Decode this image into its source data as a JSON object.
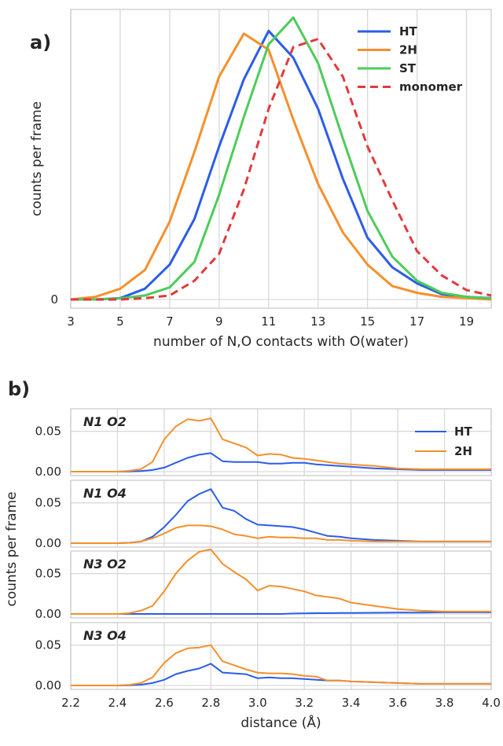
{
  "colors": {
    "HT": "#2b5de8",
    "2H": "#f5902b",
    "ST": "#4dcc5a",
    "monomer": "#e03a3e"
  },
  "chart_data": [
    {
      "panel": "a)",
      "type": "line",
      "xlabel": "number of N,O contacts with O(water)",
      "ylabel": "counts per frame",
      "xlim": [
        3,
        20
      ],
      "ylim": [
        0,
        1.08
      ],
      "xticks": [
        3,
        5,
        7,
        9,
        11,
        13,
        15,
        17,
        19
      ],
      "yticks": [
        0
      ],
      "grid": true,
      "legend_position": "top-right",
      "series": [
        {
          "name": "HT",
          "style": "solid",
          "color": "#2b5de8",
          "x": [
            3,
            4,
            5,
            6,
            7,
            8,
            9,
            10,
            11,
            12,
            13,
            14,
            15,
            16,
            17,
            18,
            19,
            20
          ],
          "y": [
            0,
            0,
            0.005,
            0.04,
            0.13,
            0.3,
            0.57,
            0.82,
            1.0,
            0.9,
            0.71,
            0.45,
            0.23,
            0.12,
            0.06,
            0.02,
            0.01,
            0.005
          ]
        },
        {
          "name": "2H",
          "style": "solid",
          "color": "#f5902b",
          "x": [
            3,
            4,
            5,
            6,
            7,
            8,
            9,
            10,
            11,
            12,
            13,
            14,
            15,
            16,
            17,
            18,
            19,
            20
          ],
          "y": [
            0,
            0.01,
            0.04,
            0.11,
            0.29,
            0.55,
            0.83,
            0.99,
            0.93,
            0.67,
            0.43,
            0.25,
            0.13,
            0.05,
            0.025,
            0.01,
            0.005,
            0
          ]
        },
        {
          "name": "ST",
          "style": "solid",
          "color": "#4dcc5a",
          "x": [
            3,
            4,
            5,
            6,
            7,
            8,
            9,
            10,
            11,
            12,
            13,
            14,
            15,
            16,
            17,
            18,
            19,
            20
          ],
          "y": [
            0,
            0,
            0.004,
            0.015,
            0.045,
            0.14,
            0.39,
            0.68,
            0.95,
            1.05,
            0.88,
            0.6,
            0.33,
            0.16,
            0.07,
            0.025,
            0.01,
            0.004
          ]
        },
        {
          "name": "monomer",
          "style": "dashed",
          "color": "#e03a3e",
          "x": [
            3,
            4,
            5,
            6,
            7,
            8,
            9,
            10,
            11,
            12,
            13,
            14,
            15,
            16,
            17,
            18,
            19,
            20
          ],
          "y": [
            0,
            0,
            0,
            0.005,
            0.015,
            0.07,
            0.17,
            0.41,
            0.71,
            0.94,
            0.97,
            0.83,
            0.57,
            0.37,
            0.18,
            0.09,
            0.035,
            0.015
          ]
        }
      ]
    },
    {
      "panel": "b)",
      "type": "line",
      "xlabel": "distance (Å)",
      "ylabel": "counts per frame",
      "xlim": [
        2.2,
        4.0
      ],
      "ylim": [
        0,
        0.075
      ],
      "xticks": [
        2.2,
        2.4,
        2.6,
        2.8,
        3.0,
        3.2,
        3.4,
        3.6,
        3.8,
        4.0
      ],
      "yticks": [
        0.0,
        0.05
      ],
      "grid": true,
      "legend_position": "top-right",
      "legend": [
        "HT",
        "2H"
      ],
      "x": [
        2.2,
        2.3,
        2.4,
        2.45,
        2.5,
        2.55,
        2.6,
        2.65,
        2.7,
        2.75,
        2.8,
        2.85,
        2.9,
        2.95,
        3.0,
        3.05,
        3.1,
        3.15,
        3.2,
        3.25,
        3.3,
        3.35,
        3.4,
        3.5,
        3.6,
        3.7,
        3.8,
        3.9,
        4.0
      ],
      "subplots": [
        {
          "title": "N1 O2",
          "series": [
            {
              "name": "HT",
              "values": [
                0,
                0,
                0,
                0.0002,
                0.0008,
                0.002,
                0.005,
                0.011,
                0.017,
                0.021,
                0.023,
                0.013,
                0.012,
                0.012,
                0.012,
                0.01,
                0.01,
                0.011,
                0.011,
                0.009,
                0.008,
                0.007,
                0.006,
                0.004,
                0.003,
                0.002,
                0.002,
                0.002,
                0.002
              ]
            },
            {
              "name": "2H",
              "values": [
                0,
                0,
                0,
                0.001,
                0.003,
                0.012,
                0.04,
                0.056,
                0.065,
                0.063,
                0.066,
                0.04,
                0.035,
                0.03,
                0.02,
                0.022,
                0.021,
                0.017,
                0.016,
                0.014,
                0.012,
                0.01,
                0.009,
                0.007,
                0.004,
                0.003,
                0.003,
                0.003,
                0.003
              ]
            }
          ]
        },
        {
          "title": "N1 O4",
          "series": [
            {
              "name": "HT",
              "values": [
                0,
                0,
                0,
                0.0005,
                0.002,
                0.008,
                0.02,
                0.035,
                0.052,
                0.061,
                0.067,
                0.044,
                0.04,
                0.03,
                0.023,
                0.022,
                0.021,
                0.02,
                0.017,
                0.013,
                0.009,
                0.008,
                0.006,
                0.004,
                0.003,
                0.002,
                0.002,
                0.002,
                0.002
              ]
            },
            {
              "name": "2H",
              "values": [
                0,
                0,
                0,
                0.0005,
                0.002,
                0.006,
                0.012,
                0.019,
                0.022,
                0.022,
                0.021,
                0.017,
                0.011,
                0.009,
                0.006,
                0.008,
                0.007,
                0.007,
                0.006,
                0.006,
                0.004,
                0.004,
                0.003,
                0.002,
                0.002,
                0.002,
                0.002,
                0.002,
                0.002
              ]
            }
          ]
        },
        {
          "title": "N3 O2",
          "series": [
            {
              "name": "HT",
              "values": [
                0,
                0,
                0,
                0,
                0,
                0,
                0,
                0,
                0,
                0,
                0,
                0,
                0,
                0,
                0,
                0,
                0,
                0.0005,
                0.0008,
                0.001,
                0.001,
                0.0012,
                0.0012,
                0.0015,
                0.0018,
                0.0018,
                0.002,
                0.002,
                0.002
              ]
            },
            {
              "name": "2H",
              "values": [
                0,
                0,
                0,
                0.001,
                0.004,
                0.01,
                0.028,
                0.05,
                0.066,
                0.077,
                0.08,
                0.062,
                0.052,
                0.043,
                0.029,
                0.035,
                0.034,
                0.031,
                0.028,
                0.023,
                0.021,
                0.019,
                0.014,
                0.01,
                0.006,
                0.004,
                0.003,
                0.003,
                0.003
              ]
            }
          ]
        },
        {
          "title": "N3 O4",
          "series": [
            {
              "name": "HT",
              "values": [
                0,
                0,
                0,
                0.0003,
                0.001,
                0.003,
                0.007,
                0.014,
                0.018,
                0.021,
                0.027,
                0.016,
                0.015,
                0.014,
                0.009,
                0.01,
                0.009,
                0.009,
                0.008,
                0.007,
                0.006,
                0.006,
                0.005,
                0.004,
                0.003,
                0.002,
                0.002,
                0.002,
                0.002
              ]
            },
            {
              "name": "2H",
              "values": [
                0,
                0,
                0,
                0.0008,
                0.003,
                0.01,
                0.028,
                0.04,
                0.046,
                0.047,
                0.05,
                0.03,
                0.025,
                0.02,
                0.016,
                0.015,
                0.015,
                0.014,
                0.012,
                0.011,
                0.006,
                0.006,
                0.005,
                0.004,
                0.003,
                0.002,
                0.002,
                0.002,
                0.002
              ]
            }
          ]
        }
      ]
    }
  ]
}
